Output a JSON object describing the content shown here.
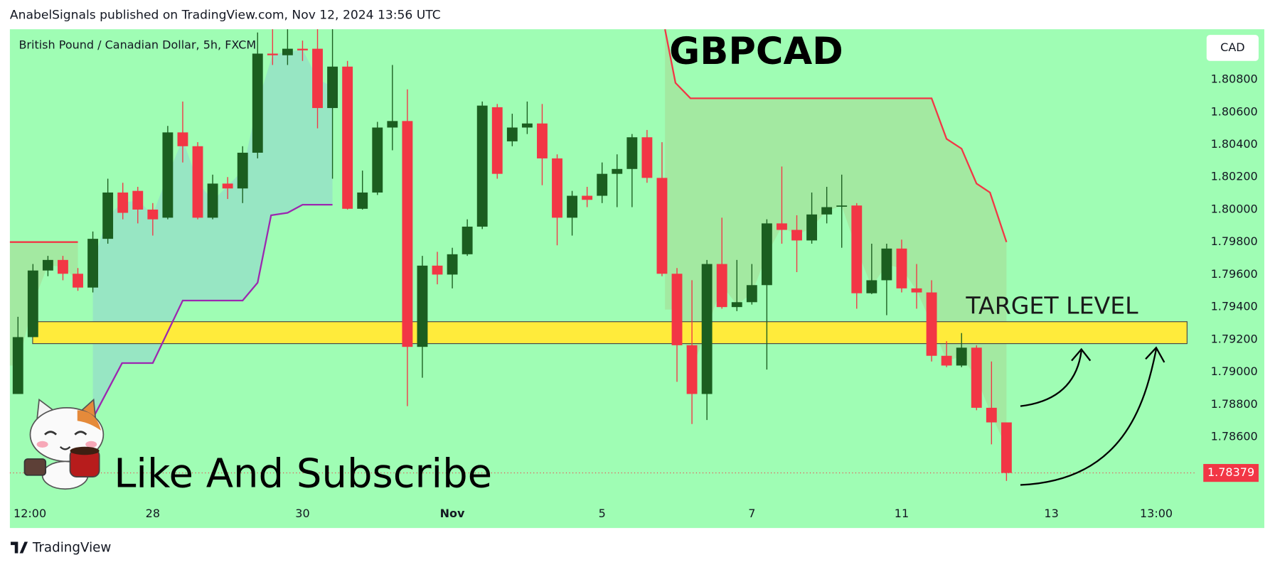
{
  "chart_data": {
    "type": "candlestick",
    "header": "AnabelSignals published on TradingView.com, Nov 12, 2024 13:56 UTC",
    "subtitle": "British Pound / Canadian Dollar, 5h, FXCM",
    "title": "GBPCAD",
    "currency": "CAD",
    "brand": "TradingView",
    "annotations": [
      "TARGET LEVEL",
      "Like And Subscribe"
    ],
    "background": "#9ffdb4",
    "up_color": "#1b5e20",
    "down_color": "#f23645",
    "xlim": [
      -0.54,
      78.6
    ],
    "xticks": [
      {
        "value": 0.8,
        "label": "12:00"
      },
      {
        "value": 9,
        "label": "28"
      },
      {
        "value": 19,
        "label": "30"
      },
      {
        "value": 29,
        "label": "Nov"
      },
      {
        "value": 39,
        "label": "5"
      },
      {
        "value": 49,
        "label": "7"
      },
      {
        "value": 59,
        "label": "11"
      },
      {
        "value": 69,
        "label": "13"
      },
      {
        "value": 76,
        "label": "13:00"
      }
    ],
    "ylim": [
      1.7819,
      1.8111
    ],
    "yticks": [
      {
        "value": 1.786,
        "label": "1.78600"
      },
      {
        "value": 1.788,
        "label": "1.78800"
      },
      {
        "value": 1.79,
        "label": "1.79000"
      },
      {
        "value": 1.792,
        "label": "1.79200"
      },
      {
        "value": 1.794,
        "label": "1.79400"
      },
      {
        "value": 1.796,
        "label": "1.79600"
      },
      {
        "value": 1.798,
        "label": "1.79800"
      },
      {
        "value": 1.8,
        "label": "1.80000"
      },
      {
        "value": 1.802,
        "label": "1.80200"
      },
      {
        "value": 1.804,
        "label": "1.80400"
      },
      {
        "value": 1.806,
        "label": "1.80600"
      },
      {
        "value": 1.808,
        "label": "1.80800"
      }
    ],
    "x": [
      0,
      1,
      2,
      3,
      4,
      5,
      6,
      7,
      8,
      9,
      10,
      11,
      12,
      13,
      14,
      15,
      16,
      17,
      18,
      19,
      20,
      21,
      22,
      23,
      24,
      25,
      26,
      27,
      28,
      29,
      30,
      31,
      32,
      33,
      34,
      35,
      36,
      37,
      38,
      39,
      40,
      41,
      42,
      43,
      44,
      45,
      46,
      47,
      48,
      49,
      50,
      51,
      52,
      53,
      54,
      55,
      56,
      57,
      58,
      59,
      60,
      61,
      62,
      63,
      64,
      65,
      66
    ],
    "open": [
      1.78865,
      1.79215,
      1.79625,
      1.7969,
      1.79605,
      1.7952,
      1.7982,
      1.80105,
      1.80115,
      1.8,
      1.7995,
      1.80475,
      1.8039,
      1.7995,
      1.8016,
      1.8013,
      1.8035,
      1.8096,
      1.8095,
      1.8099,
      1.8099,
      1.80625,
      1.8088,
      1.80005,
      1.80105,
      1.80505,
      1.80545,
      1.79155,
      1.79655,
      1.796,
      1.79725,
      1.79895,
      1.8063,
      1.8042,
      1.80505,
      1.8053,
      1.80315,
      1.7995,
      1.80085,
      1.80085,
      1.8022,
      1.8025,
      1.80445,
      1.80195,
      1.79605,
      1.79165,
      1.78865,
      1.79665,
      1.794,
      1.7943,
      1.79535,
      1.79915,
      1.79875,
      1.7981,
      1.7997,
      1.8002,
      1.80025,
      1.79485,
      1.79565,
      1.7976,
      1.79515,
      1.7949,
      1.791,
      1.7904,
      1.7915,
      1.7878,
      1.7869
    ],
    "high": [
      1.7934,
      1.79665,
      1.79715,
      1.79715,
      1.7964,
      1.79865,
      1.8019,
      1.80165,
      1.8014,
      1.8004,
      1.80515,
      1.80665,
      1.80415,
      1.80215,
      1.802,
      1.8039,
      1.8109,
      1.8111,
      1.8111,
      1.8104,
      1.8111,
      1.8111,
      1.80915,
      1.8024,
      1.8054,
      1.8089,
      1.8074,
      1.79715,
      1.7974,
      1.79765,
      1.7994,
      1.80665,
      1.8065,
      1.8059,
      1.80665,
      1.8065,
      1.8034,
      1.80115,
      1.8014,
      1.8029,
      1.8034,
      1.80465,
      1.8049,
      1.80415,
      1.7964,
      1.79565,
      1.7969,
      1.7995,
      1.7969,
      1.79665,
      1.7994,
      1.80265,
      1.79965,
      1.80105,
      1.8014,
      1.80215,
      1.8004,
      1.7979,
      1.7979,
      1.79815,
      1.79665,
      1.79565,
      1.7919,
      1.7924,
      1.79165,
      1.79065,
      1.7869
    ],
    "low": [
      1.78865,
      1.79215,
      1.7959,
      1.79565,
      1.795,
      1.7949,
      1.7979,
      1.7994,
      1.79915,
      1.7984,
      1.7994,
      1.8029,
      1.7994,
      1.7994,
      1.80065,
      1.8004,
      1.80315,
      1.8089,
      1.8089,
      1.80915,
      1.805,
      1.8019,
      1.8,
      1.8,
      1.8009,
      1.80365,
      1.7879,
      1.78965,
      1.7954,
      1.79515,
      1.79715,
      1.7988,
      1.8019,
      1.8039,
      1.80465,
      1.8015,
      1.7978,
      1.7984,
      1.80015,
      1.8004,
      1.80015,
      1.80015,
      1.80165,
      1.7959,
      1.7894,
      1.7868,
      1.78705,
      1.7939,
      1.79375,
      1.79415,
      1.79015,
      1.7979,
      1.79615,
      1.7979,
      1.79915,
      1.79765,
      1.7939,
      1.7948,
      1.7935,
      1.7949,
      1.7939,
      1.79065,
      1.7903,
      1.7903,
      1.78765,
      1.78555,
      1.7833
    ],
    "close": [
      1.79215,
      1.79625,
      1.7969,
      1.79605,
      1.7952,
      1.7982,
      1.80105,
      1.7998,
      1.8,
      1.7994,
      1.80475,
      1.8039,
      1.7995,
      1.8016,
      1.8013,
      1.8035,
      1.8096,
      1.8095,
      1.8099,
      1.8098,
      1.80625,
      1.8088,
      1.80005,
      1.80105,
      1.80505,
      1.80545,
      1.79155,
      1.79655,
      1.796,
      1.79725,
      1.79895,
      1.8064,
      1.8022,
      1.80505,
      1.8053,
      1.80315,
      1.7995,
      1.80085,
      1.8006,
      1.8022,
      1.8025,
      1.80445,
      1.80195,
      1.79605,
      1.79165,
      1.78865,
      1.79665,
      1.794,
      1.7943,
      1.79535,
      1.79915,
      1.79875,
      1.7981,
      1.7997,
      1.80015,
      1.80025,
      1.79485,
      1.79565,
      1.7976,
      1.79515,
      1.7949,
      1.791,
      1.7904,
      1.7915,
      1.7878,
      1.7869,
      1.78379
    ],
    "indicator_lines": [
      {
        "color": "#f23645",
        "shade": "rgba(190,110,50,0.14)",
        "x": [
          -0.54,
          4.0
        ],
        "values": [
          1.798,
          1.798
        ]
      },
      {
        "color": "#f23645",
        "shade": "rgba(190,110,50,0.14)",
        "x": [
          43.2,
          43.9,
          44.9,
          61.0,
          62.0,
          63.0,
          64.0,
          64.9,
          66.0
        ],
        "values": [
          1.8111,
          1.8078,
          1.80685,
          1.80685,
          1.80435,
          1.80375,
          1.8016,
          1.80105,
          1.798
        ]
      },
      {
        "color": "#9c27b0",
        "shade": "rgba(120,140,255,0.2)",
        "x": [
          5.0,
          6.95,
          9.0,
          11.0,
          15.0,
          16.0,
          16.9,
          18.0,
          19.0,
          21.0
        ],
        "values": [
          1.78715,
          1.79055,
          1.79055,
          1.7944,
          1.7944,
          1.7955,
          1.79965,
          1.7998,
          1.8003,
          1.8003
        ]
      }
    ],
    "target_zone": {
      "color": "#ffeb3b",
      "range": [
        1.79175,
        1.7931
      ]
    }
  }
}
